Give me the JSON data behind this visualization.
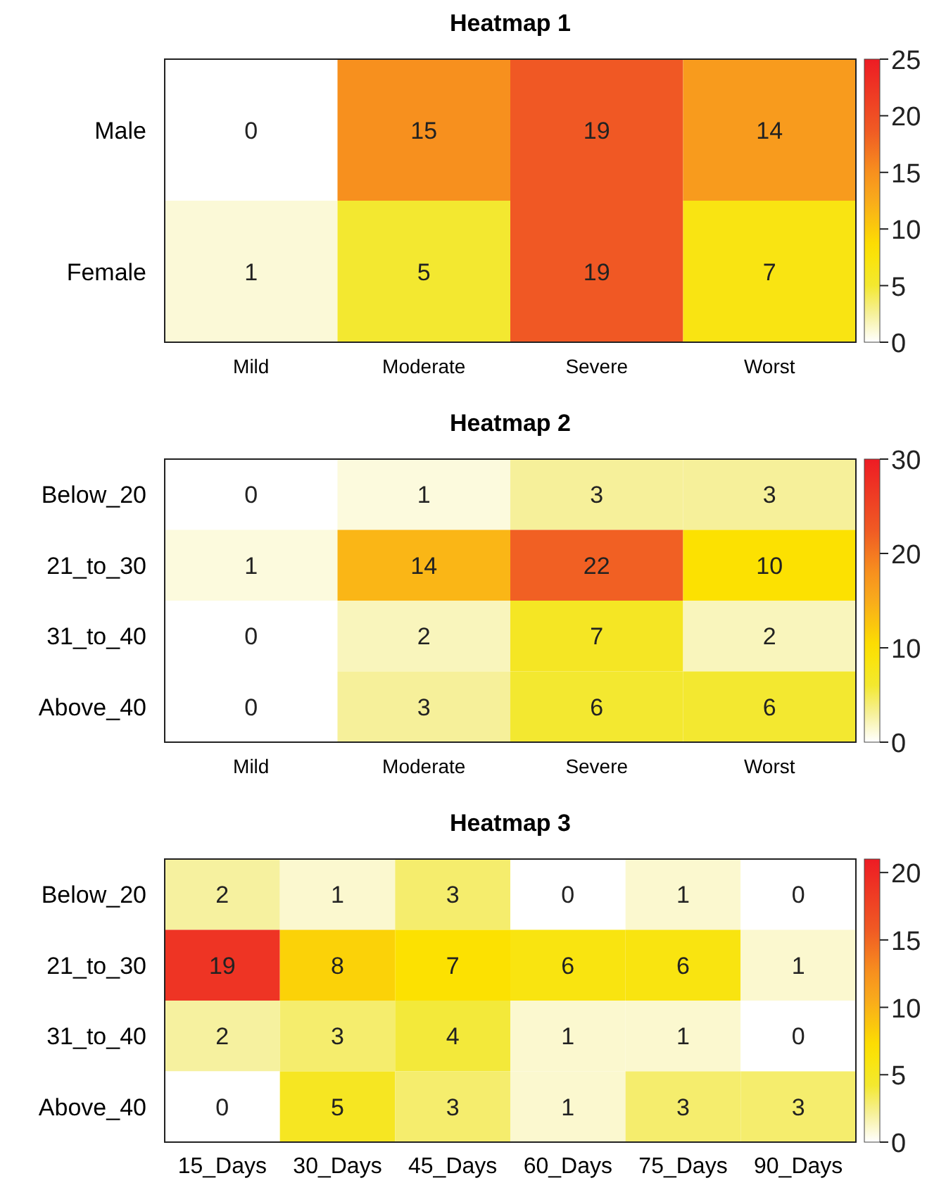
{
  "chart_data": [
    {
      "type": "heatmap",
      "title": "Heatmap 1",
      "categories": [
        "Mild",
        "Moderate",
        "Severe",
        "Worst"
      ],
      "y_categories": [
        "Male",
        "Female"
      ],
      "cells": [
        [
          0,
          15,
          19,
          14
        ],
        [
          1,
          5,
          19,
          7
        ]
      ],
      "clim": [
        0,
        25
      ],
      "cticks": [
        0,
        5,
        10,
        15,
        20,
        25
      ],
      "data_labels": true
    },
    {
      "type": "heatmap",
      "title": "Heatmap 2",
      "categories": [
        "Mild",
        "Moderate",
        "Severe",
        "Worst"
      ],
      "y_categories": [
        "Below_20",
        "21_to_30",
        "31_to_40",
        "Above_40"
      ],
      "cells": [
        [
          0,
          1,
          3,
          3
        ],
        [
          1,
          14,
          22,
          10
        ],
        [
          0,
          2,
          7,
          2
        ],
        [
          0,
          3,
          6,
          6
        ]
      ],
      "clim": [
        0,
        30
      ],
      "cticks": [
        0,
        10,
        20,
        30
      ],
      "data_labels": true
    },
    {
      "type": "heatmap",
      "title": "Heatmap 3",
      "categories": [
        "15_Days",
        "30_Days",
        "45_Days",
        "60_Days",
        "75_Days",
        "90_Days"
      ],
      "y_categories": [
        "Below_20",
        "21_to_30",
        "31_to_40",
        "Above_40"
      ],
      "cells": [
        [
          2,
          1,
          3,
          0,
          1,
          0
        ],
        [
          19,
          8,
          7,
          6,
          6,
          1
        ],
        [
          2,
          3,
          4,
          1,
          1,
          0
        ],
        [
          0,
          5,
          3,
          1,
          3,
          3
        ]
      ],
      "clim": [
        0,
        21
      ],
      "cticks": [
        0,
        5,
        10,
        15,
        20
      ],
      "data_labels": true
    }
  ]
}
